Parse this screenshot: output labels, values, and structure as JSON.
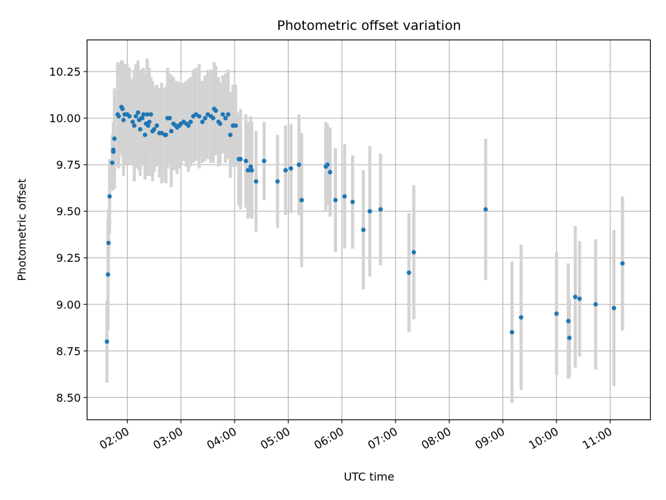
{
  "chart_data": {
    "type": "scatter",
    "title": "Photometric offset variation",
    "xlabel": "UTC time",
    "ylabel": "Photometric offset",
    "x_unit": "hours UTC",
    "xlim": [
      1.25,
      11.75
    ],
    "ylim": [
      8.38,
      10.42
    ],
    "yticks": [
      8.5,
      8.75,
      9.0,
      9.25,
      9.5,
      9.75,
      10.0,
      10.25
    ],
    "ytick_labels": [
      "8.50",
      "8.75",
      "9.00",
      "9.25",
      "9.50",
      "9.75",
      "10.00",
      "10.25"
    ],
    "xticks": [
      2,
      3,
      4,
      5,
      6,
      7,
      8,
      9,
      10,
      11
    ],
    "xtick_labels": [
      "02:00",
      "03:00",
      "04:00",
      "05:00",
      "06:00",
      "07:00",
      "08:00",
      "09:00",
      "10:00",
      "11:00"
    ],
    "grid": true,
    "colors": {
      "point": "#1f77b4",
      "errorbar": "#d3d3d3",
      "grid": "#b0b0b0"
    },
    "points": [
      [
        1.62,
        8.8,
        0.22
      ],
      [
        1.64,
        9.16,
        0.3
      ],
      [
        1.65,
        9.33,
        0.18
      ],
      [
        1.67,
        9.58,
        0.2
      ],
      [
        1.72,
        9.76,
        0.15
      ],
      [
        1.74,
        9.83,
        0.15
      ],
      [
        1.74,
        9.82,
        0.14
      ],
      [
        1.76,
        9.89,
        0.27
      ],
      [
        1.82,
        10.02,
        0.28
      ],
      [
        1.84,
        10.01,
        0.28
      ],
      [
        1.89,
        10.06,
        0.25
      ],
      [
        1.91,
        10.05,
        0.26
      ],
      [
        1.93,
        9.99,
        0.3
      ],
      [
        1.95,
        10.02,
        0.27
      ],
      [
        2.0,
        10.02,
        0.27
      ],
      [
        2.04,
        10.01,
        0.26
      ],
      [
        2.1,
        9.98,
        0.23
      ],
      [
        2.13,
        9.96,
        0.3
      ],
      [
        2.16,
        10.01,
        0.28
      ],
      [
        2.2,
        10.03,
        0.28
      ],
      [
        2.22,
        9.99,
        0.27
      ],
      [
        2.24,
        9.94,
        0.25
      ],
      [
        2.26,
        10.0,
        0.26
      ],
      [
        2.28,
        10.0,
        0.25
      ],
      [
        2.3,
        10.02,
        0.25
      ],
      [
        2.33,
        9.91,
        0.24
      ],
      [
        2.35,
        9.97,
        0.27
      ],
      [
        2.37,
        10.02,
        0.3
      ],
      [
        2.39,
        9.96,
        0.27
      ],
      [
        2.41,
        9.98,
        0.29
      ],
      [
        2.44,
        10.02,
        0.2
      ],
      [
        2.47,
        9.93,
        0.27
      ],
      [
        2.5,
        9.94,
        0.23
      ],
      [
        2.55,
        9.96,
        0.22
      ],
      [
        2.6,
        9.92,
        0.24
      ],
      [
        2.64,
        9.92,
        0.27
      ],
      [
        2.7,
        9.91,
        0.25
      ],
      [
        2.72,
        9.91,
        0.26
      ],
      [
        2.75,
        10.0,
        0.27
      ],
      [
        2.79,
        10.0,
        0.24
      ],
      [
        2.82,
        9.93,
        0.3
      ],
      [
        2.86,
        9.97,
        0.25
      ],
      [
        2.9,
        9.96,
        0.24
      ],
      [
        2.93,
        9.95,
        0.25
      ],
      [
        2.97,
        9.96,
        0.23
      ],
      [
        3.0,
        9.97,
        0.22
      ],
      [
        3.05,
        9.98,
        0.21
      ],
      [
        3.1,
        9.97,
        0.23
      ],
      [
        3.14,
        9.96,
        0.25
      ],
      [
        3.18,
        9.98,
        0.24
      ],
      [
        3.23,
        10.01,
        0.25
      ],
      [
        3.28,
        10.02,
        0.25
      ],
      [
        3.34,
        10.01,
        0.28
      ],
      [
        3.4,
        9.98,
        0.22
      ],
      [
        3.45,
        10.0,
        0.23
      ],
      [
        3.5,
        10.02,
        0.24
      ],
      [
        3.56,
        10.01,
        0.25
      ],
      [
        3.6,
        10.0,
        0.24
      ],
      [
        3.62,
        10.05,
        0.25
      ],
      [
        3.65,
        10.04,
        0.24
      ],
      [
        3.7,
        9.98,
        0.24
      ],
      [
        3.73,
        9.97,
        0.22
      ],
      [
        3.78,
        10.02,
        0.21
      ],
      [
        3.83,
        10.0,
        0.24
      ],
      [
        3.88,
        10.02,
        0.24
      ],
      [
        3.92,
        9.91,
        0.23
      ],
      [
        3.97,
        9.96,
        0.22
      ],
      [
        4.02,
        9.96,
        0.22
      ],
      [
        4.08,
        9.78,
        0.25
      ],
      [
        4.11,
        9.78,
        0.27
      ],
      [
        4.21,
        9.77,
        0.25
      ],
      [
        4.25,
        9.72,
        0.26
      ],
      [
        4.3,
        9.74,
        0.27
      ],
      [
        4.32,
        9.72,
        0.26
      ],
      [
        4.4,
        9.66,
        0.27
      ],
      [
        4.55,
        9.77,
        0.21
      ],
      [
        4.8,
        9.66,
        0.25
      ],
      [
        4.95,
        9.72,
        0.24
      ],
      [
        5.05,
        9.73,
        0.24
      ],
      [
        5.2,
        9.75,
        0.27
      ],
      [
        5.25,
        9.56,
        0.36
      ],
      [
        5.7,
        9.74,
        0.24
      ],
      [
        5.73,
        9.75,
        0.22
      ],
      [
        5.78,
        9.71,
        0.24
      ],
      [
        5.88,
        9.56,
        0.28
      ],
      [
        6.05,
        9.58,
        0.28
      ],
      [
        6.2,
        9.55,
        0.25
      ],
      [
        6.4,
        9.4,
        0.32
      ],
      [
        6.52,
        9.5,
        0.35
      ],
      [
        6.72,
        9.51,
        0.3
      ],
      [
        7.25,
        9.17,
        0.32
      ],
      [
        7.34,
        9.28,
        0.36
      ],
      [
        8.68,
        9.51,
        0.38
      ],
      [
        9.17,
        8.85,
        0.38
      ],
      [
        9.34,
        8.93,
        0.39
      ],
      [
        10.0,
        8.95,
        0.33
      ],
      [
        10.22,
        8.91,
        0.31
      ],
      [
        10.24,
        8.82,
        0.21
      ],
      [
        10.35,
        9.04,
        0.38
      ],
      [
        10.43,
        9.03,
        0.31
      ],
      [
        10.73,
        9.0,
        0.35
      ],
      [
        11.07,
        8.98,
        0.42
      ],
      [
        11.23,
        9.22,
        0.36
      ]
    ]
  }
}
